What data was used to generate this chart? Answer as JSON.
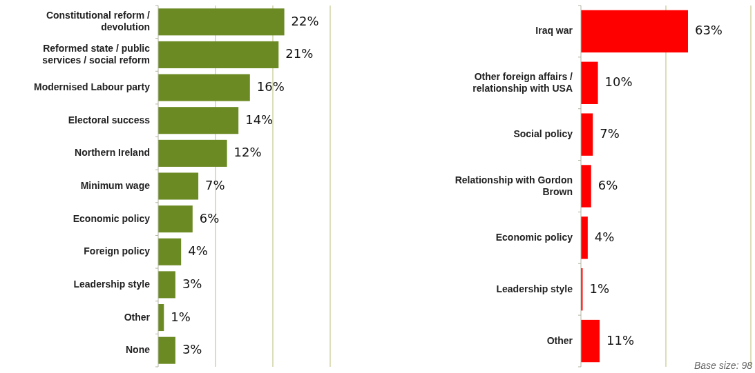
{
  "chart_data": [
    {
      "type": "bar",
      "orientation": "horizontal",
      "categories": [
        "Constitutional reform / devolution",
        "Reformed state / public services / social reform",
        "Modernised Labour party",
        "Electoral success",
        "Northern Ireland",
        "Minimum wage",
        "Economic policy",
        "Foreign policy",
        "Leadership style",
        "Other",
        "None"
      ],
      "values": [
        22,
        21,
        16,
        14,
        12,
        7,
        6,
        4,
        3,
        1,
        3
      ],
      "value_labels": [
        "22%",
        "21%",
        "16%",
        "14%",
        "12%",
        "7%",
        "6%",
        "4%",
        "3%",
        "1%",
        "3%"
      ],
      "color": "#6b8a23",
      "xlim": [
        0,
        30
      ],
      "tick_labels": "y",
      "ref_lines": [
        {
          "axis": "x",
          "value": 10,
          "color": "#c4c98c"
        },
        {
          "axis": "x",
          "value": 20,
          "color": "#c4c98c"
        },
        {
          "axis": "x",
          "value": 30,
          "color": "#c4c98c"
        }
      ]
    },
    {
      "type": "bar",
      "orientation": "horizontal",
      "categories": [
        "Iraq war",
        "Other foreign affairs / relationship with USA",
        "Social policy",
        "Relationship with Gordon Brown",
        "Economic policy",
        "Leadership style",
        "Other"
      ],
      "values": [
        63,
        10,
        7,
        6,
        4,
        1,
        11
      ],
      "value_labels": [
        "63%",
        "10%",
        "7%",
        "6%",
        "4%",
        "1%",
        "11%"
      ],
      "color": "#ff0000",
      "xlim": [
        0,
        100
      ],
      "tick_labels": "y",
      "ref_lines": [
        {
          "axis": "x",
          "value": 50,
          "color": "#c4c98c"
        },
        {
          "axis": "x",
          "value": 100,
          "color": "#c4c98c"
        }
      ],
      "annotations": [
        "Base size: 98"
      ]
    }
  ]
}
